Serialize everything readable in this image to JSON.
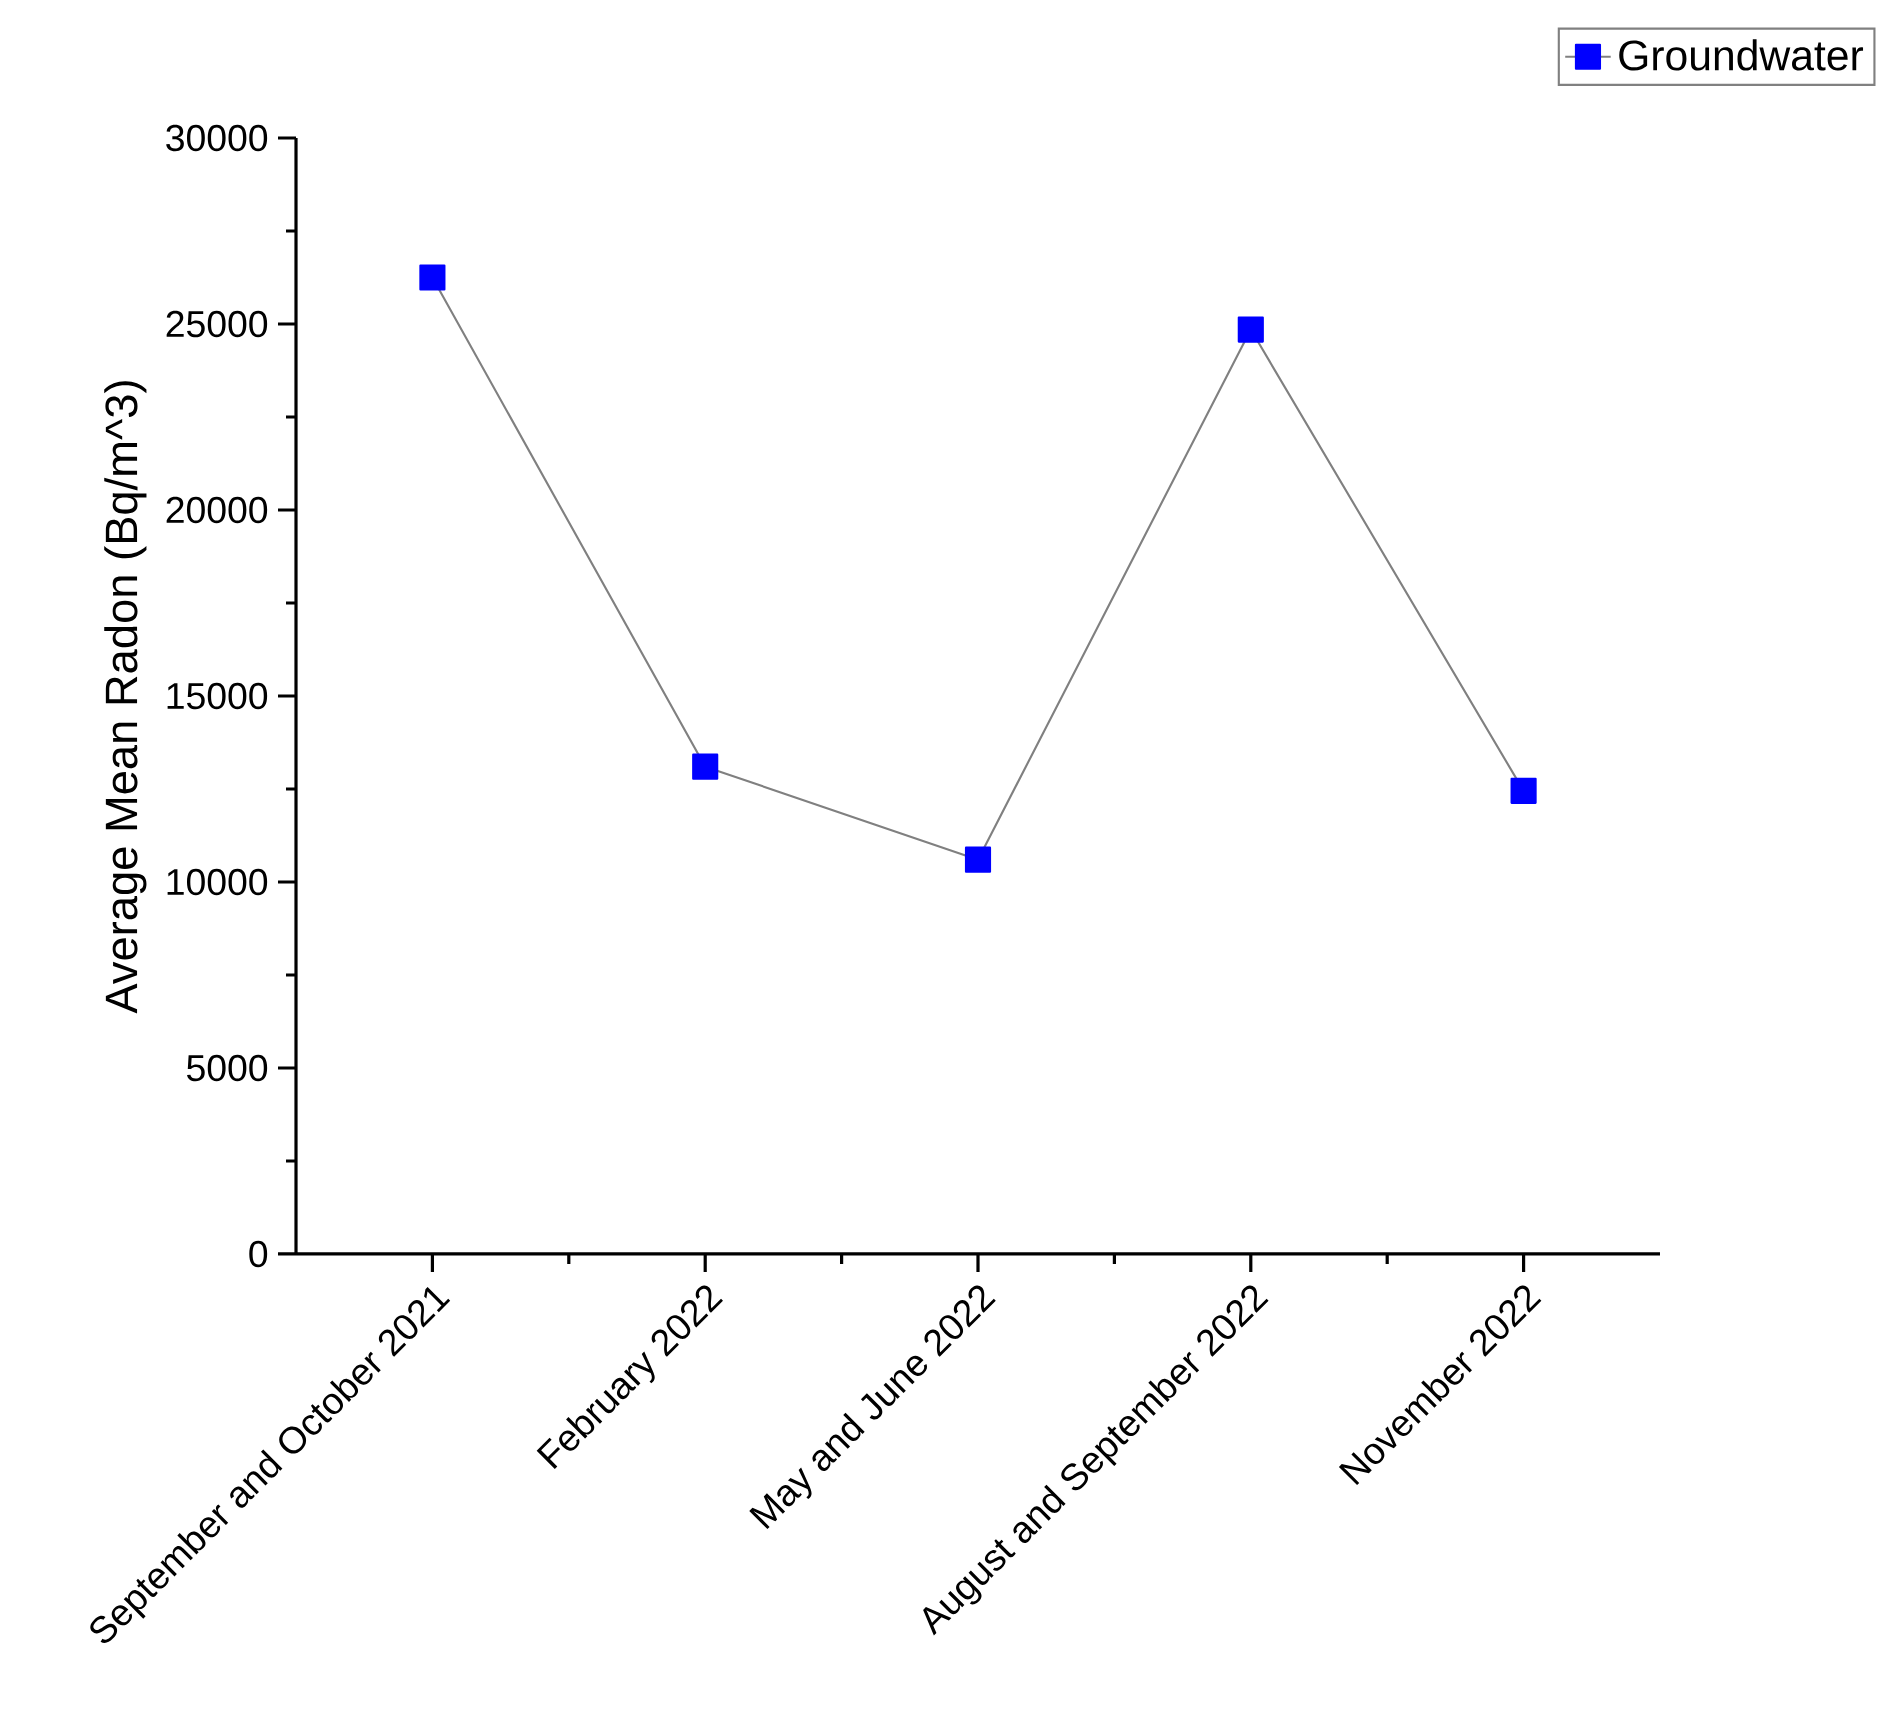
{
  "chart_data": {
    "type": "line",
    "ylabel": "Average Mean Radon (Bq/m^3)",
    "categories": [
      "September and October 2021",
      "February 2022",
      "May and June 2022",
      "August and September 2022",
      "November 2022"
    ],
    "series": [
      {
        "name": "Groundwater",
        "color": "#0000ff",
        "values": [
          26250,
          13100,
          10600,
          24850,
          12450
        ]
      }
    ],
    "ylim": [
      0,
      30000
    ],
    "yticks": [
      0,
      5000,
      10000,
      15000,
      20000,
      25000,
      30000
    ],
    "grid": false,
    "legend": "top right",
    "marker": "square",
    "line_style": "solid"
  }
}
